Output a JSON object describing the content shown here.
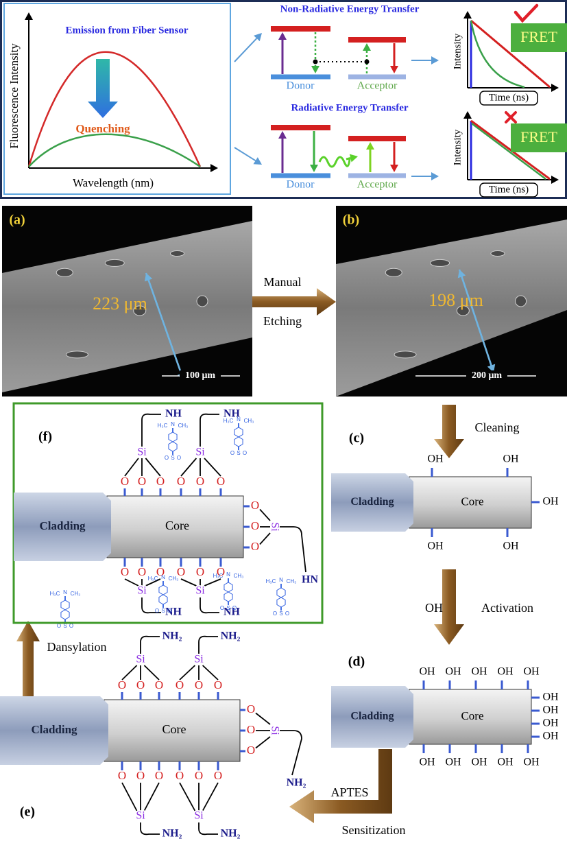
{
  "top_panel": {
    "emission": {
      "title": "Emission from Fiber Sensor",
      "y_label": "Fluorescence Intensity",
      "x_label": "Wavelength (nm)",
      "annotation": "Quenching"
    },
    "non_radiative": {
      "title": "Non-Radiative Energy Transfer",
      "donor": "Donor",
      "acceptor": "Acceptor"
    },
    "radiative": {
      "title": "Radiative Energy Transfer",
      "donor": "Donor",
      "acceptor": "Acceptor"
    },
    "decay_plots": [
      {
        "y_label": "Intensity",
        "x_label": "Time (ns)",
        "badge": "FRET"
      },
      {
        "y_label": "Intensity",
        "x_label": "Time (ns)",
        "badge": "FRET"
      }
    ]
  },
  "sem_images": [
    {
      "label": "(a)",
      "diameter": "223 μm",
      "scale_bar": "100 μm"
    },
    {
      "label": "(b)",
      "diameter": "198 μm",
      "scale_bar": "200 μm"
    }
  ],
  "steps": {
    "etching": {
      "above": "Manual",
      "below": "Etching"
    },
    "cleaning": "Cleaning",
    "activation": {
      "left": "OH",
      "right": "Activation"
    },
    "sensitization": {
      "above": "APTES",
      "below": "Sensitization"
    },
    "dansylation": {
      "label": "Dansylation",
      "reagent": {
        "h3c": "H₃C",
        "n": "N",
        "ch3": "CH₃",
        "o1": "O",
        "s": "S",
        "o2": "O"
      }
    }
  },
  "panels": {
    "c": {
      "label": "(c)",
      "cladding": "Cladding",
      "core": "Core",
      "top": [
        "OH",
        "OH"
      ],
      "right": [
        "OH"
      ],
      "bottom": [
        "OH",
        "OH"
      ]
    },
    "d": {
      "label": "(d)",
      "cladding": "Cladding",
      "core": "Core",
      "top": [
        "OH",
        "OH",
        "OH",
        "OH",
        "OH"
      ],
      "right": [
        "OH",
        "OH",
        "OH",
        "OH"
      ],
      "bottom": [
        "OH",
        "OH",
        "OH",
        "OH",
        "OH"
      ]
    },
    "e": {
      "label": "(e)",
      "cladding": "Cladding",
      "core": "Core",
      "top_oxygens": [
        "O",
        "O",
        "O",
        "O",
        "O",
        "O"
      ],
      "right_oxygens": [
        "O",
        "O",
        "O"
      ],
      "bottom_oxygens": [
        "O",
        "O",
        "O",
        "O",
        "O",
        "O"
      ],
      "silicons": [
        "Si",
        "Si",
        "Si",
        "Si",
        "Si"
      ],
      "amines": [
        "NH₂",
        "NH₂",
        "NH₂",
        "NH₂",
        "NH₂"
      ]
    },
    "f": {
      "label": "(f)",
      "cladding": "Cladding",
      "core": "Core",
      "top_oxygens": [
        "O",
        "O",
        "O",
        "O",
        "O",
        "O"
      ],
      "right_oxygens": [
        "O",
        "O",
        "O"
      ],
      "bottom_oxygens": [
        "O",
        "O",
        "O",
        "O",
        "O",
        "O"
      ],
      "silicons": [
        "Si",
        "Si",
        "Si",
        "Si",
        "Si"
      ],
      "amines": [
        "NH",
        "NH",
        "HN",
        "NH",
        "NH"
      ],
      "dansyl": [
        {
          "h3c": "H₃C",
          "n": "N",
          "ch3": "CH₃",
          "o1": "O",
          "s": "S",
          "o2": "O"
        },
        {
          "h3c": "H₃C",
          "n": "N",
          "ch3": "CH₃",
          "o1": "O",
          "s": "S",
          "o2": "O"
        },
        {
          "h3c": "H₃C",
          "n": "N",
          "ch3": "CH₃",
          "o1": "O",
          "s": "S",
          "o2": "O"
        },
        {
          "h3c": "H₃C",
          "n": "N",
          "ch3": "CH₃",
          "o1": "O",
          "s": "S",
          "o2": "O"
        },
        {
          "h3c": "H₃C",
          "n": "N",
          "ch3": "CH₃",
          "o1": "O",
          "s": "S",
          "o2": "O"
        }
      ]
    }
  }
}
